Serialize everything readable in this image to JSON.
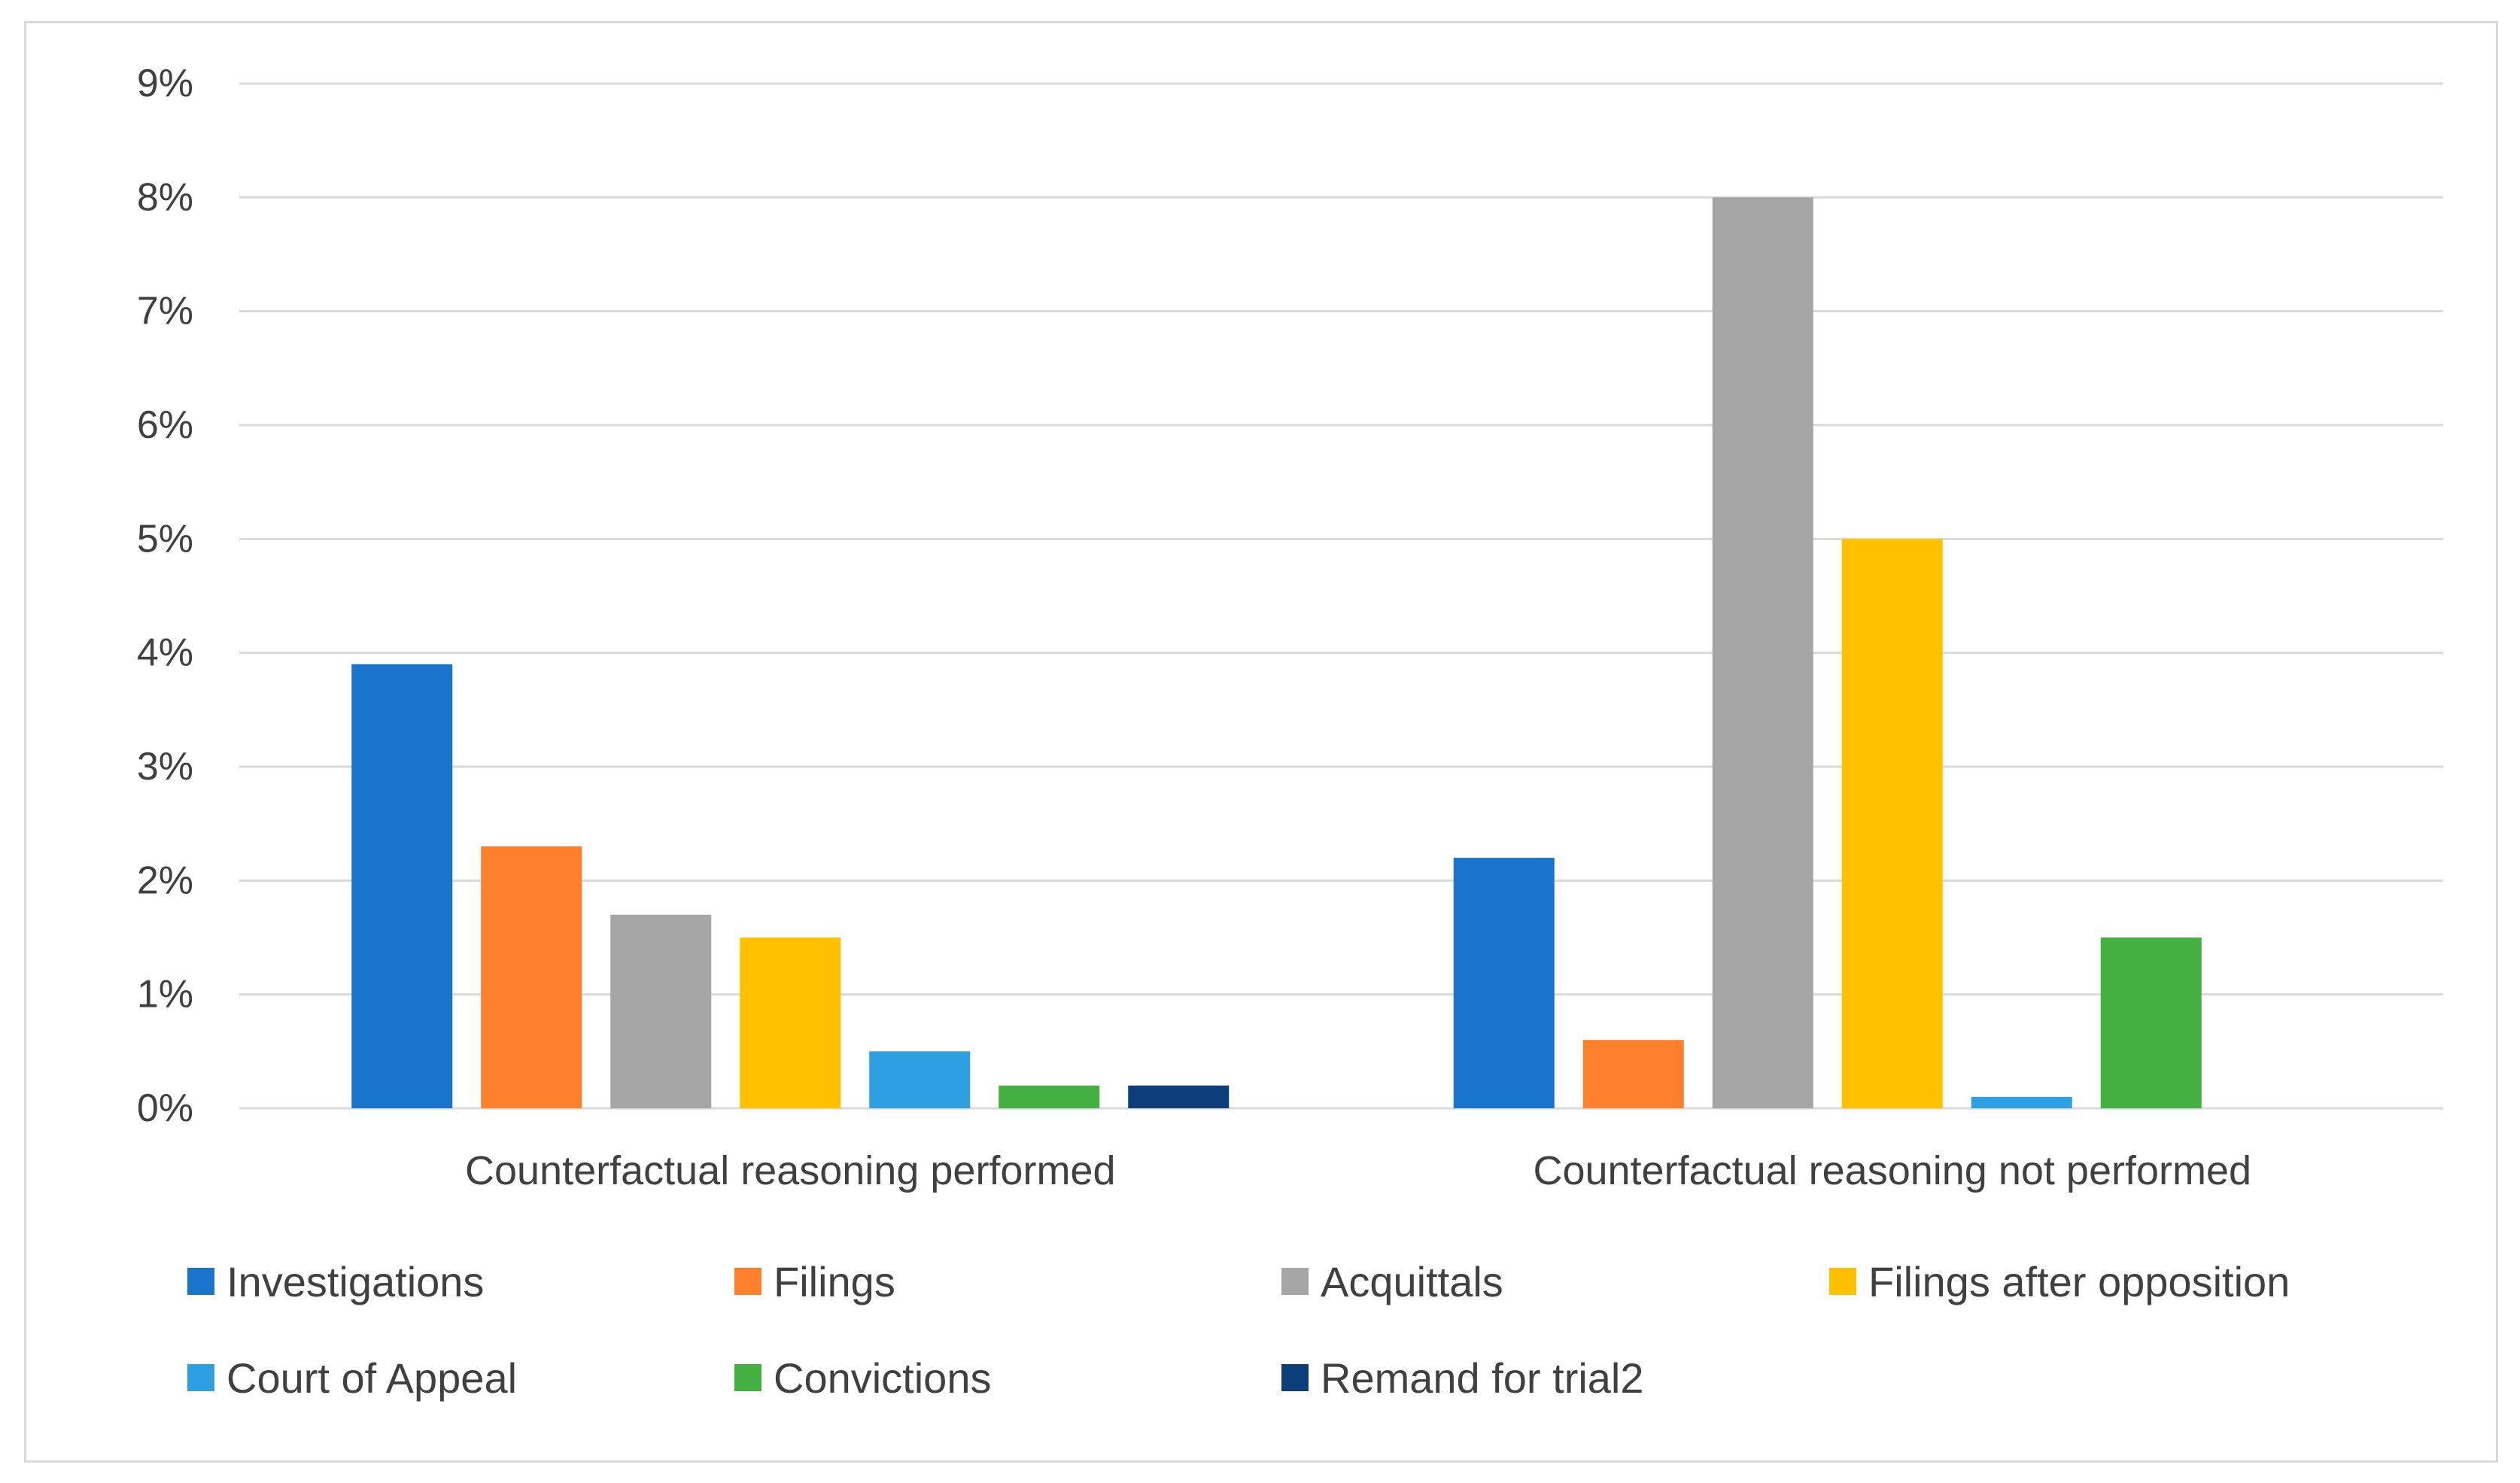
{
  "chart_data": {
    "type": "bar",
    "title": "",
    "xlabel": "",
    "ylabel": "",
    "ylim": [
      0,
      9
    ],
    "yticks": [
      0,
      1,
      2,
      3,
      4,
      5,
      6,
      7,
      8,
      9
    ],
    "ytick_labels": [
      "0%",
      "1%",
      "2%",
      "3%",
      "4%",
      "5%",
      "6%",
      "7%",
      "8%",
      "9%"
    ],
    "grid": true,
    "legend_position": "bottom",
    "categories": [
      "Counterfactual reasoning performed",
      "Counterfactual reasoning not performed"
    ],
    "series": [
      {
        "name": "Investigations",
        "color": "#1874cd",
        "values": [
          3.9,
          2.2
        ]
      },
      {
        "name": "Filings",
        "color": "#fd7f2b",
        "values": [
          2.3,
          0.6
        ]
      },
      {
        "name": "Acquittals",
        "color": "#a5a5a5",
        "values": [
          1.7,
          8.0
        ]
      },
      {
        "name": "Filings after opposition",
        "color": "#ffc000",
        "values": [
          1.5,
          5.0
        ]
      },
      {
        "name": "Court of Appeal",
        "color": "#2e9fe0",
        "values": [
          0.5,
          0.1
        ]
      },
      {
        "name": "Convictions",
        "color": "#45b042",
        "values": [
          0.2,
          1.5
        ]
      },
      {
        "name": "Remand for trial2",
        "color": "#0d3e7a",
        "values": [
          0.2,
          0
        ]
      }
    ]
  }
}
